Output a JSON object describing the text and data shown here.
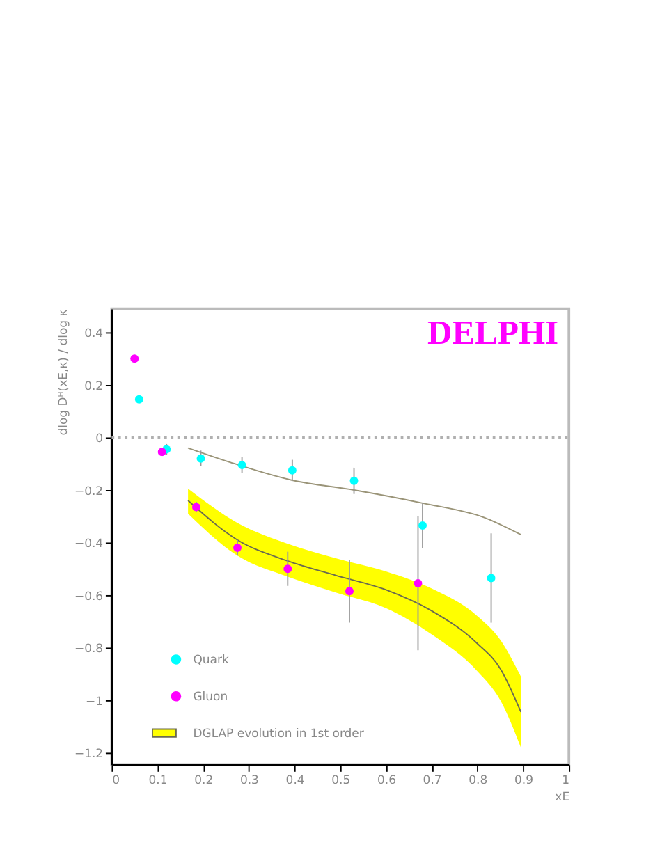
{
  "chart_data": {
    "type": "scatter",
    "xlabel": "xE",
    "ylabel": "dlog Dᴴ(xE,κ) / dlog κ",
    "annotations": [
      "DELPHI"
    ],
    "xlim": [
      0,
      1
    ],
    "ylim": [
      -1.245,
      0.49
    ],
    "xticks": [
      0,
      0.1,
      0.2,
      0.3,
      0.4,
      0.5,
      0.6,
      0.7,
      0.8,
      0.9,
      1
    ],
    "yticks": [
      -1.2,
      -1,
      -0.8,
      -0.6,
      -0.4,
      -0.2,
      0,
      0.2,
      0.4
    ],
    "grid": false,
    "legend": "bottom left",
    "marker": "circle",
    "ref_lines": [
      {
        "axis": "y",
        "value": 0,
        "color": "#b0b0b0",
        "line_style": "dotted"
      }
    ],
    "series": [
      {
        "name": "DGLAP evolution in 1st order",
        "type": "line",
        "color": "#6b6b50",
        "line_style": "solid",
        "marker": "none",
        "x": [
          0.167,
          0.275,
          0.385,
          0.49,
          0.6,
          0.7,
          0.8,
          0.85,
          0.895
        ],
        "values": [
          -0.24,
          -0.39,
          -0.47,
          -0.525,
          -0.58,
          -0.66,
          -0.785,
          -0.88,
          -1.045
        ],
        "lower": [
          -0.29,
          -0.45,
          -0.53,
          -0.59,
          -0.65,
          -0.75,
          -0.89,
          -1.0,
          -1.18
        ],
        "upper": [
          -0.195,
          -0.325,
          -0.405,
          -0.46,
          -0.51,
          -0.575,
          -0.68,
          -0.77,
          -0.91
        ]
      },
      {
        "type": "line",
        "color": "#9a9478",
        "line_style": "solid",
        "marker": "none",
        "x": [
          0.167,
          0.26,
          0.395,
          0.53,
          0.68,
          0.815,
          0.895
        ],
        "values": [
          -0.04,
          -0.095,
          -0.163,
          -0.2,
          -0.25,
          -0.305,
          -0.37
        ]
      },
      {
        "name": "Quark",
        "color": "#00ffff",
        "x": [
          0.06,
          0.12,
          0.195,
          0.285,
          0.395,
          0.53,
          0.68,
          0.83
        ],
        "values": [
          0.145,
          -0.045,
          -0.08,
          -0.105,
          -0.125,
          -0.165,
          -0.335,
          -0.535
        ],
        "errors": [
          null,
          0.02,
          0.03,
          0.03,
          0.04,
          0.05,
          0.085,
          0.17
        ]
      },
      {
        "name": "Gluon",
        "color": "#ff00ff",
        "x": [
          0.05,
          0.11,
          0.185,
          0.275,
          0.385,
          0.52,
          0.67
        ],
        "values": [
          0.3,
          -0.055,
          -0.265,
          -0.42,
          -0.5,
          -0.585,
          -0.555
        ],
        "errors": [
          null,
          null,
          0.02,
          0.03,
          0.065,
          0.12,
          0.255
        ]
      }
    ]
  }
}
